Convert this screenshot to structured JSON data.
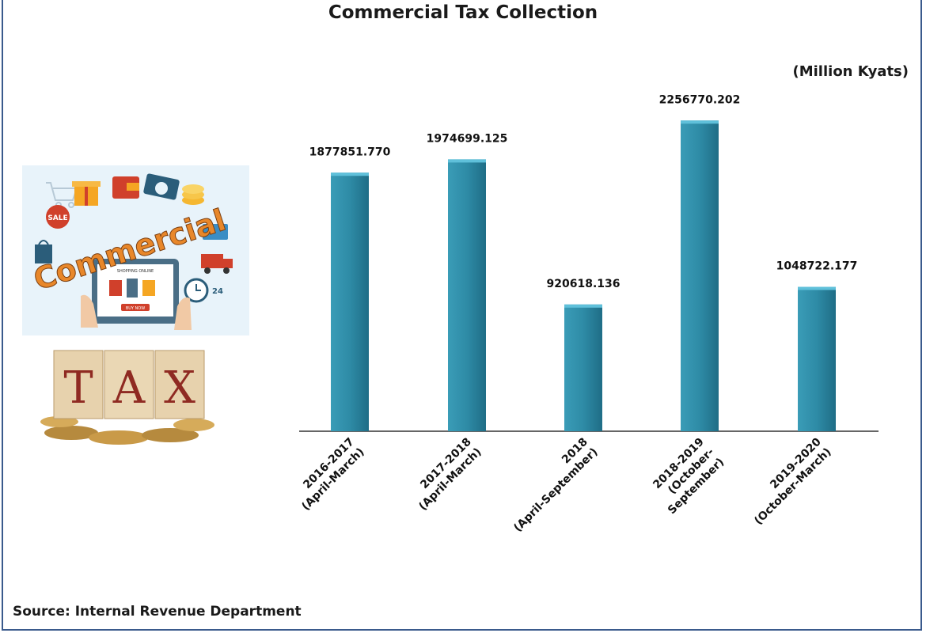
{
  "title": "Commercial Tax Collection",
  "unit_label": "(Million Kyats)",
  "source": "Source: Internal Revenue Department",
  "illustration": {
    "commercial_word": "Commercial",
    "tax_letters": [
      "T",
      "A",
      "X"
    ],
    "sale_tag": "SALE",
    "shop_header": "SHOPPING ONLINE",
    "buy_button": "BUY NOW",
    "clock_number": "24"
  },
  "colors": {
    "bar": "#2e8ba6",
    "bar_top": "#5fc0da",
    "axis": "#333333",
    "frame": "#3a5a8c"
  },
  "chart_data": {
    "type": "bar",
    "categories": [
      [
        "2016-2017",
        "(April-March)"
      ],
      [
        "2017-2018",
        "(April-March)"
      ],
      [
        "2018",
        "(April-September)"
      ],
      [
        "2018-2019",
        "(October-",
        "September)"
      ],
      [
        "2019-2020",
        "(October-March)"
      ]
    ],
    "values": [
      1877851.77,
      1974699.125,
      920618.136,
      2256770.202,
      1048722.177
    ],
    "value_labels": [
      "1877851.770",
      "1974699.125",
      "920618.136",
      "2256770.202",
      "1048722.177"
    ],
    "title": "Commercial Tax Collection",
    "ylabel": "(Million Kyats)",
    "ylim": [
      0,
      2500000
    ],
    "grid": false,
    "legend": "none"
  }
}
